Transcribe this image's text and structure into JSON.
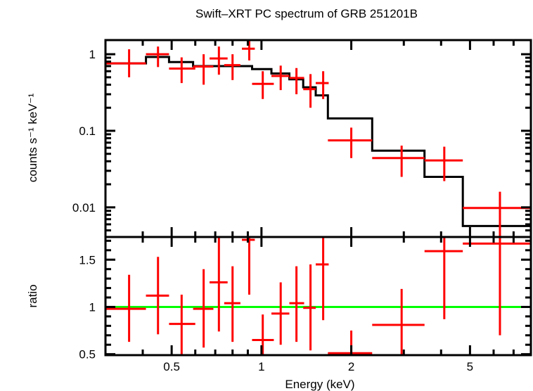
{
  "chart_data": [
    {
      "panel": "spectrum",
      "type": "scatter",
      "title": "Swift–XRT PC spectrum of GRB 251201B",
      "xlabel": "Energy (keV)",
      "ylabel": "counts s⁻¹ keV⁻¹",
      "xscale": "log",
      "yscale": "log",
      "xlim": [
        0.3,
        8.0
      ],
      "ylim": [
        0.0041,
        1.53
      ],
      "yticks": [
        {
          "v": 1,
          "label": "1"
        },
        {
          "v": 0.1,
          "label": "0.1"
        },
        {
          "v": 0.01,
          "label": "0.01"
        }
      ],
      "grid": false,
      "data_color": "#ff0000",
      "model_color": "#000000",
      "points": [
        {
          "x": 0.36,
          "xlo": 0.3,
          "xhi": 0.41,
          "y": 0.76,
          "ylo": 0.5,
          "yhi": 1.16
        },
        {
          "x": 0.45,
          "xlo": 0.41,
          "xhi": 0.49,
          "y": 1.0,
          "ylo": 0.68,
          "yhi": 1.26
        },
        {
          "x": 0.54,
          "xlo": 0.49,
          "xhi": 0.6,
          "y": 0.65,
          "ylo": 0.42,
          "yhi": 0.91
        },
        {
          "x": 0.64,
          "xlo": 0.59,
          "xhi": 0.69,
          "y": 0.69,
          "ylo": 0.4,
          "yhi": 1.0
        },
        {
          "x": 0.72,
          "xlo": 0.67,
          "xhi": 0.77,
          "y": 0.88,
          "ylo": 0.54,
          "yhi": 1.26
        },
        {
          "x": 0.8,
          "xlo": 0.75,
          "xhi": 0.85,
          "y": 0.72,
          "ylo": 0.46,
          "yhi": 1.0
        },
        {
          "x": 0.91,
          "xlo": 0.86,
          "xhi": 0.95,
          "y": 1.18,
          "ylo": 0.83,
          "yhi": 1.53
        },
        {
          "x": 1.01,
          "xlo": 0.93,
          "xhi": 1.1,
          "y": 0.41,
          "ylo": 0.26,
          "yhi": 0.6
        },
        {
          "x": 1.16,
          "xlo": 1.08,
          "xhi": 1.24,
          "y": 0.52,
          "ylo": 0.34,
          "yhi": 0.71
        },
        {
          "x": 1.31,
          "xlo": 1.24,
          "xhi": 1.39,
          "y": 0.49,
          "ylo": 0.3,
          "yhi": 0.66
        },
        {
          "x": 1.46,
          "xlo": 1.38,
          "xhi": 1.52,
          "y": 0.35,
          "ylo": 0.2,
          "yhi": 0.55
        },
        {
          "x": 1.61,
          "xlo": 1.52,
          "xhi": 1.68,
          "y": 0.42,
          "ylo": 0.26,
          "yhi": 0.6
        },
        {
          "x": 2.0,
          "xlo": 1.67,
          "xhi": 2.35,
          "y": 0.075,
          "ylo": 0.044,
          "yhi": 0.11
        },
        {
          "x": 2.95,
          "xlo": 2.35,
          "xhi": 3.52,
          "y": 0.044,
          "ylo": 0.025,
          "yhi": 0.064
        },
        {
          "x": 4.1,
          "xlo": 3.52,
          "xhi": 4.73,
          "y": 0.041,
          "ylo": 0.022,
          "yhi": 0.062
        },
        {
          "x": 6.3,
          "xlo": 4.73,
          "xhi": 8.0,
          "y": 0.0098,
          "ylo": 0.0041,
          "yhi": 0.016
        }
      ],
      "model_steps": [
        {
          "xlo": 0.3,
          "xhi": 0.41,
          "y": 0.76
        },
        {
          "xlo": 0.41,
          "xhi": 0.49,
          "y": 0.92
        },
        {
          "xlo": 0.49,
          "xhi": 0.59,
          "y": 0.79
        },
        {
          "xlo": 0.59,
          "xhi": 0.93,
          "y": 0.7
        },
        {
          "xlo": 0.93,
          "xhi": 1.08,
          "y": 0.64
        },
        {
          "xlo": 1.08,
          "xhi": 1.24,
          "y": 0.56
        },
        {
          "xlo": 1.24,
          "xhi": 1.38,
          "y": 0.47
        },
        {
          "xlo": 1.38,
          "xhi": 1.52,
          "y": 0.37
        },
        {
          "xlo": 1.52,
          "xhi": 1.67,
          "y": 0.29
        },
        {
          "xlo": 1.67,
          "xhi": 2.35,
          "y": 0.145
        },
        {
          "xlo": 2.35,
          "xhi": 3.52,
          "y": 0.055
        },
        {
          "xlo": 3.52,
          "xhi": 4.73,
          "y": 0.025
        },
        {
          "xlo": 4.73,
          "xhi": 8.0,
          "y": 0.0057
        }
      ]
    },
    {
      "panel": "ratio",
      "type": "scatter",
      "xlabel": "Energy (keV)",
      "ylabel": "ratio",
      "xscale": "log",
      "yscale": "linear",
      "xlim": [
        0.3,
        8.0
      ],
      "ylim": [
        0.49,
        1.74
      ],
      "xticks": [
        {
          "v": 0.5,
          "label": "0.5"
        },
        {
          "v": 1,
          "label": "1"
        },
        {
          "v": 2,
          "label": "2"
        },
        {
          "v": 5,
          "label": "5"
        }
      ],
      "yticks": [
        {
          "v": 1.5,
          "label": "1.5"
        },
        {
          "v": 1,
          "label": "1"
        },
        {
          "v": 0.5,
          "label": "0.5"
        }
      ],
      "reference_line": {
        "y": 1,
        "color": "#00ff00"
      },
      "data_color": "#ff0000",
      "points": [
        {
          "x": 0.36,
          "xlo": 0.3,
          "xhi": 0.41,
          "y": 0.98,
          "ylo": 0.63,
          "yhi": 1.34
        },
        {
          "x": 0.45,
          "xlo": 0.41,
          "xhi": 0.49,
          "y": 1.12,
          "ylo": 0.71,
          "yhi": 1.53
        },
        {
          "x": 0.54,
          "xlo": 0.49,
          "xhi": 0.6,
          "y": 0.82,
          "ylo": 0.49,
          "yhi": 1.13
        },
        {
          "x": 0.64,
          "xlo": 0.59,
          "xhi": 0.69,
          "y": 0.98,
          "ylo": 0.57,
          "yhi": 1.4
        },
        {
          "x": 0.72,
          "xlo": 0.67,
          "xhi": 0.77,
          "y": 1.26,
          "ylo": 0.74,
          "yhi": 1.74
        },
        {
          "x": 0.8,
          "xlo": 0.75,
          "xhi": 0.85,
          "y": 1.04,
          "ylo": 0.63,
          "yhi": 1.43
        },
        {
          "x": 0.91,
          "xlo": 0.86,
          "xhi": 0.95,
          "y": 1.71,
          "ylo": 1.13,
          "yhi": 1.74
        },
        {
          "x": 1.01,
          "xlo": 0.93,
          "xhi": 1.1,
          "y": 0.65,
          "ylo": 0.49,
          "yhi": 0.92
        },
        {
          "x": 1.16,
          "xlo": 1.08,
          "xhi": 1.24,
          "y": 0.93,
          "ylo": 0.6,
          "yhi": 1.26
        },
        {
          "x": 1.31,
          "xlo": 1.24,
          "xhi": 1.39,
          "y": 1.04,
          "ylo": 0.63,
          "yhi": 1.43
        },
        {
          "x": 1.46,
          "xlo": 1.38,
          "xhi": 1.52,
          "y": 0.99,
          "ylo": 0.54,
          "yhi": 1.45
        },
        {
          "x": 1.61,
          "xlo": 1.52,
          "xhi": 1.68,
          "y": 1.45,
          "ylo": 0.86,
          "yhi": 1.74
        },
        {
          "x": 2.0,
          "xlo": 1.67,
          "xhi": 2.35,
          "y": 0.51,
          "ylo": 0.49,
          "yhi": 0.75
        },
        {
          "x": 2.95,
          "xlo": 2.35,
          "xhi": 3.52,
          "y": 0.81,
          "ylo": 0.49,
          "yhi": 1.19
        },
        {
          "x": 4.1,
          "xlo": 3.52,
          "xhi": 4.73,
          "y": 1.59,
          "ylo": 0.87,
          "yhi": 1.74
        },
        {
          "x": 6.3,
          "xlo": 4.73,
          "xhi": 8.0,
          "y": 1.67,
          "ylo": 0.7,
          "yhi": 1.74
        }
      ]
    }
  ]
}
